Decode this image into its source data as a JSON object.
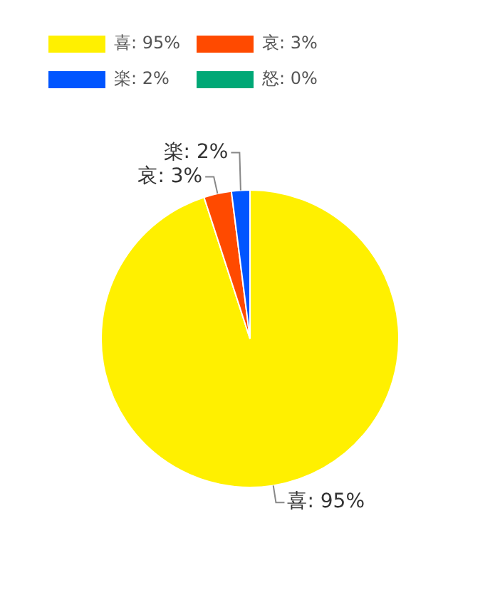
{
  "chart_data": {
    "type": "pie",
    "categories": [
      "喜",
      "哀",
      "楽",
      "怒"
    ],
    "values": [
      95,
      3,
      2,
      0
    ],
    "colors": [
      "#fff000",
      "#ff4a00",
      "#0055ff",
      "#00a876"
    ],
    "value_labels": [
      "95%",
      "3%",
      "2%",
      "0%"
    ],
    "legend": "top left"
  }
}
